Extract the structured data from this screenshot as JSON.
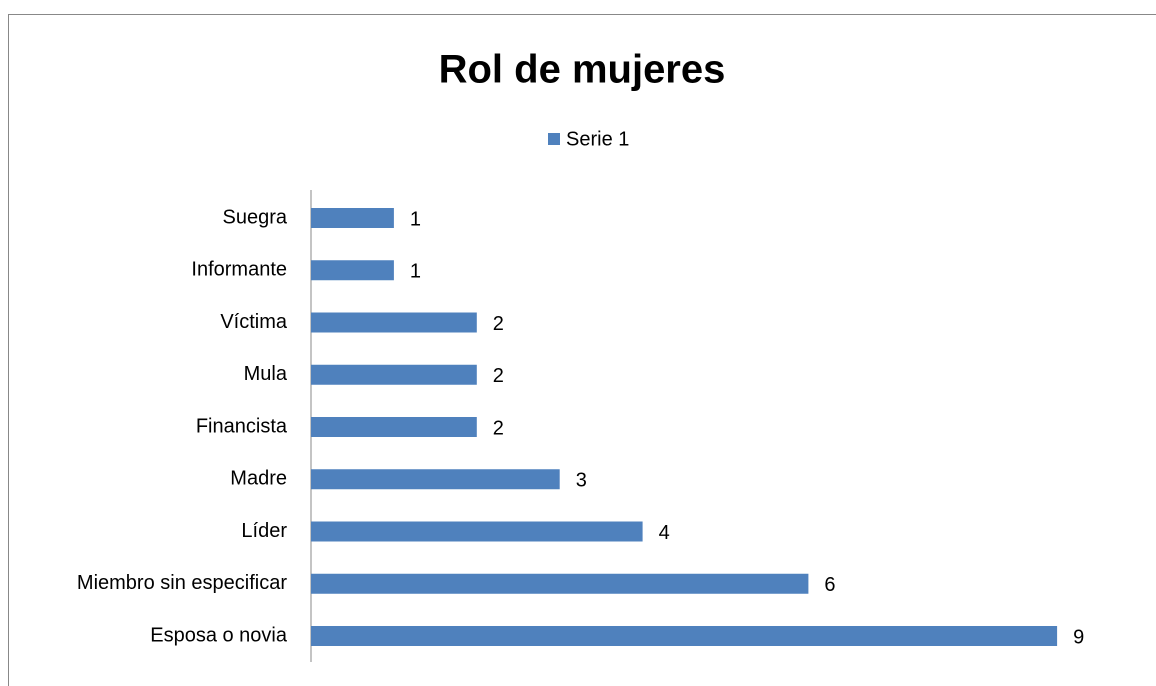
{
  "chart_data": {
    "type": "bar",
    "orientation": "horizontal",
    "title": "Rol de mujeres",
    "categories": [
      "Esposa o novia",
      "Miembro sin especificar",
      "Líder",
      "Madre",
      "Financista",
      "Mula",
      "Víctima",
      "Informante",
      "Suegra"
    ],
    "series": [
      {
        "name": "Serie 1",
        "color": "#4f81bd",
        "values": [
          9,
          6,
          4,
          3,
          2,
          2,
          2,
          1,
          1
        ]
      }
    ],
    "legend": "top"
  }
}
